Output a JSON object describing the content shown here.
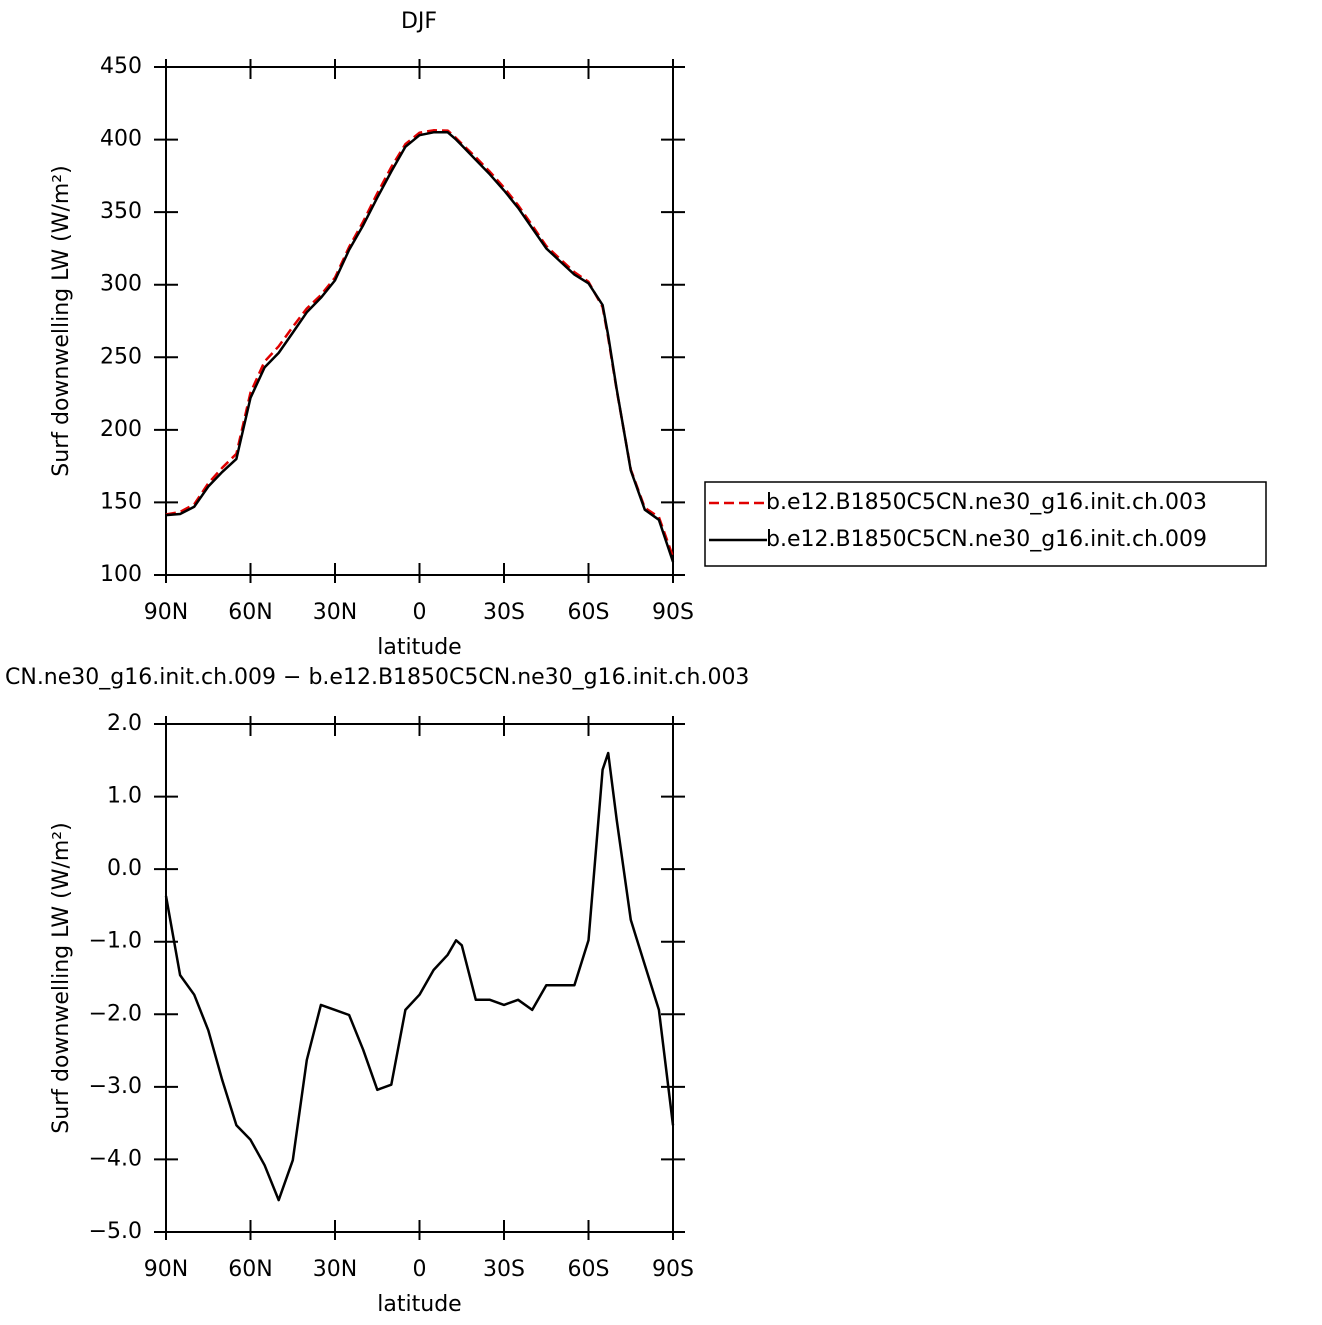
{
  "chart_data": [
    {
      "type": "line",
      "title": "DJF",
      "xlabel": "latitude",
      "ylabel": "Surf downwelling LW (W/m²)",
      "x": [
        90,
        85,
        80,
        75,
        70,
        65,
        60,
        55,
        50,
        45,
        40,
        35,
        30,
        25,
        20,
        15,
        10,
        5,
        0,
        -5,
        -10,
        -13,
        -15,
        -20,
        -25,
        -30,
        -35,
        -40,
        -45,
        -50,
        -55,
        -60,
        -65,
        -67,
        -70,
        -75,
        -80,
        -85,
        -90
      ],
      "xlim": [
        90,
        -90
      ],
      "xticks": [
        {
          "value": 90,
          "label": "90N"
        },
        {
          "value": 60,
          "label": "60N"
        },
        {
          "value": 30,
          "label": "30N"
        },
        0,
        {
          "value": -30,
          "label": "30S"
        },
        {
          "value": -60,
          "label": "60S"
        },
        {
          "value": -90,
          "label": "90S"
        }
      ],
      "ylim": [
        100,
        450
      ],
      "yticks": [
        100,
        150,
        200,
        250,
        300,
        350,
        400,
        450
      ],
      "legend": "right",
      "series": [
        {
          "name": "b.e12.B1850C5CN.ne30_g16.init.ch.003",
          "color": "#e00000",
          "linestyle": "dashed",
          "values": [
            141.7,
            143.5,
            148.7,
            163.2,
            173.9,
            183.5,
            225.7,
            247.1,
            257.6,
            271,
            283.6,
            292.9,
            304.9,
            326,
            343.5,
            363,
            381,
            396.9,
            404.7,
            406.4,
            406.2,
            401,
            397.1,
            387.8,
            377.8,
            366.9,
            354.8,
            340.9,
            326.6,
            317.6,
            308.6,
            302,
            284.6,
            263.4,
            227.3,
            172.7,
            146.3,
            139.9,
            112.5
          ]
        },
        {
          "name": "b.e12.B1850C5CN.ne30_g16.init.ch.009",
          "color": "#000000",
          "linestyle": "solid",
          "values": [
            141.3,
            142,
            147,
            161,
            171,
            180,
            222,
            243,
            253,
            267,
            281,
            291,
            303,
            324,
            341,
            360,
            378,
            395,
            403,
            405,
            405,
            400,
            396,
            386,
            376,
            365,
            353,
            339,
            325,
            316,
            307,
            301,
            286,
            265,
            228,
            172,
            145,
            138,
            109
          ]
        }
      ]
    },
    {
      "type": "line",
      "title": "CN.ne30_g16.init.ch.009 − b.e12.B1850C5CN.ne30_g16.init.ch.003",
      "xlabel": "latitude",
      "ylabel": "Surf downwelling LW (W/m²)",
      "x": [
        90,
        85,
        80,
        75,
        70,
        65,
        60,
        55,
        50,
        45,
        40,
        35,
        30,
        25,
        20,
        15,
        10,
        5,
        0,
        -5,
        -10,
        -13,
        -15,
        -20,
        -25,
        -30,
        -35,
        -40,
        -45,
        -50,
        -55,
        -60,
        -65,
        -67,
        -70,
        -75,
        -80,
        -85,
        -90
      ],
      "xlim": [
        90,
        -90
      ],
      "xticks": [
        {
          "value": 90,
          "label": "90N"
        },
        {
          "value": 60,
          "label": "60N"
        },
        {
          "value": 30,
          "label": "30N"
        },
        0,
        {
          "value": -30,
          "label": "30S"
        },
        {
          "value": -60,
          "label": "60S"
        },
        {
          "value": -90,
          "label": "90S"
        }
      ],
      "ylim": [
        -5,
        2
      ],
      "yticks": [
        {
          "value": -5,
          "label": "−5.0"
        },
        {
          "value": -4,
          "label": "−4.0"
        },
        {
          "value": -3,
          "label": "−3.0"
        },
        {
          "value": -2,
          "label": "−2.0"
        },
        {
          "value": -1,
          "label": "−1.0"
        },
        {
          "value": 0,
          "label": "0.0"
        },
        {
          "value": 1,
          "label": "1.0"
        },
        {
          "value": 2,
          "label": "2.0"
        }
      ],
      "color": "#000000",
      "values": [
        -0.37,
        -1.46,
        -1.73,
        -2.22,
        -2.91,
        -3.53,
        -3.73,
        -4.08,
        -4.56,
        -4.01,
        -2.63,
        -1.87,
        -1.94,
        -2.01,
        -2.49,
        -3.04,
        -2.97,
        -1.94,
        -1.73,
        -1.39,
        -1.18,
        -0.98,
        -1.05,
        -1.8,
        -1.8,
        -1.87,
        -1.8,
        -1.94,
        -1.6,
        -1.6,
        -1.6,
        -0.98,
        1.37,
        1.6,
        0.68,
        -0.7,
        -1.32,
        -1.94,
        -3.53
      ]
    }
  ]
}
